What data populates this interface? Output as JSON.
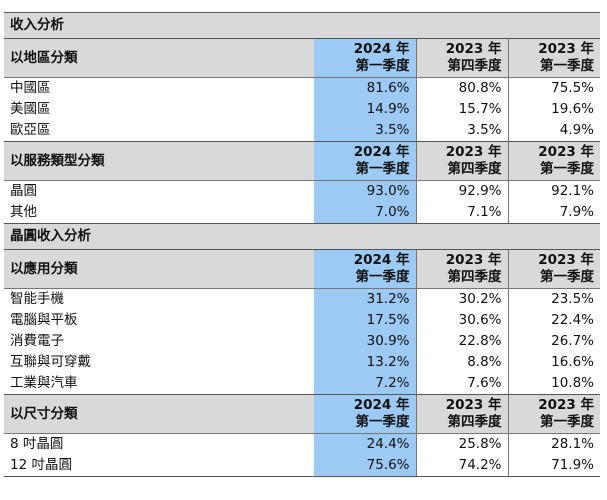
{
  "sections": [
    {
      "title": "收入分析",
      "groups": [
        {
          "header": "以地區分類",
          "cols": [
            [
              "2024 年",
              "第一季度"
            ],
            [
              "2023 年",
              "第四季度"
            ],
            [
              "2023 年",
              "第一季度"
            ]
          ],
          "rows": [
            {
              "label": "中國區",
              "v": [
                "81.6%",
                "80.8%",
                "75.5%"
              ]
            },
            {
              "label": "美國區",
              "v": [
                "14.9%",
                "15.7%",
                "19.6%"
              ]
            },
            {
              "label": "歐亞區",
              "v": [
                "3.5%",
                "3.5%",
                "4.9%"
              ]
            }
          ]
        },
        {
          "header": "以服務類型分類",
          "cols": [
            [
              "2024 年",
              "第一季度"
            ],
            [
              "2023 年",
              "第四季度"
            ],
            [
              "2023 年",
              "第一季度"
            ]
          ],
          "rows": [
            {
              "label": "晶圓",
              "v": [
                "93.0%",
                "92.9%",
                "92.1%"
              ]
            },
            {
              "label": "其他",
              "v": [
                "7.0%",
                "7.1%",
                "7.9%"
              ]
            }
          ]
        }
      ]
    },
    {
      "title": "晶圓收入分析",
      "groups": [
        {
          "header": "以應用分類",
          "cols": [
            [
              "2024 年",
              "第一季度"
            ],
            [
              "2023 年",
              "第四季度"
            ],
            [
              "2023 年",
              "第一季度"
            ]
          ],
          "rows": [
            {
              "label": "智能手機",
              "v": [
                "31.2%",
                "30.2%",
                "23.5%"
              ]
            },
            {
              "label": "電腦與平板",
              "v": [
                "17.5%",
                "30.6%",
                "22.4%"
              ]
            },
            {
              "label": "消費電子",
              "v": [
                "30.9%",
                "22.8%",
                "26.7%"
              ]
            },
            {
              "label": "互聯與可穿戴",
              "v": [
                "13.2%",
                "8.8%",
                "16.6%"
              ]
            },
            {
              "label": "工業與汽車",
              "v": [
                "7.2%",
                "7.6%",
                "10.8%"
              ]
            }
          ]
        },
        {
          "header": "以尺寸分類",
          "cols": [
            [
              "2024 年",
              "第一季度"
            ],
            [
              "2023 年",
              "第四季度"
            ],
            [
              "2023 年",
              "第一季度"
            ]
          ],
          "rows": [
            {
              "label": "8 吋晶圓",
              "v": [
                "24.4%",
                "25.8%",
                "28.1%"
              ]
            },
            {
              "label": "12 吋晶圓",
              "v": [
                "75.6%",
                "74.2%",
                "71.9%"
              ]
            }
          ]
        }
      ]
    }
  ],
  "colors": {
    "highlight": "#9ccaf4",
    "header_bg": "#d9d9d9"
  }
}
